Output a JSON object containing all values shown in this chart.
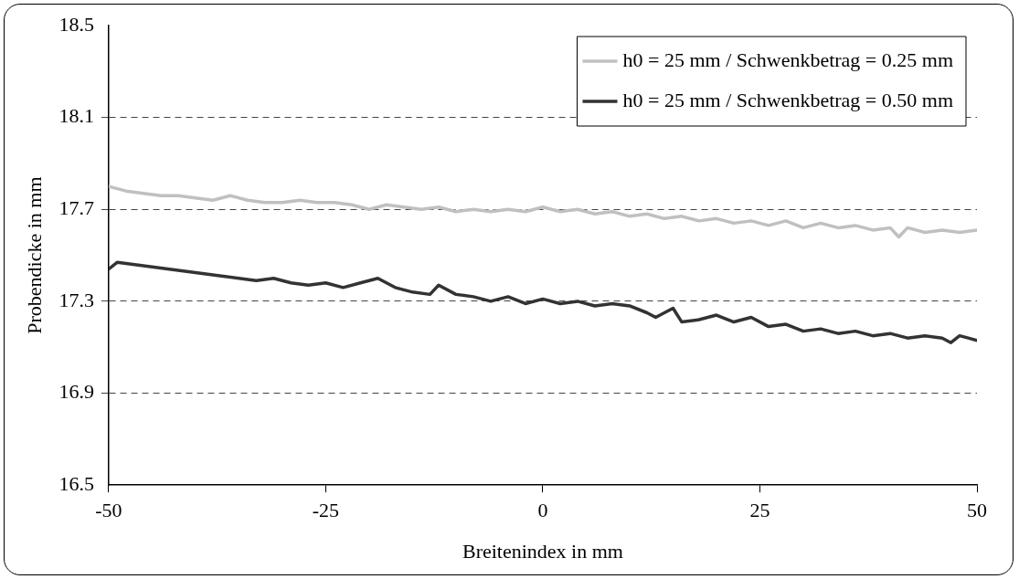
{
  "chart_data": {
    "type": "line",
    "xlabel": "Breitenindex in mm",
    "ylabel": "Probendicke in mm",
    "xlim": [
      -50,
      50
    ],
    "xticks": [
      -50,
      -25,
      0,
      25,
      50
    ],
    "ylim": [
      16.5,
      18.5
    ],
    "yticks": [
      16.5,
      16.9,
      17.3,
      17.7,
      18.1,
      18.5
    ],
    "grid": "y",
    "legend": "top right",
    "marker": "none",
    "line_style": "solid",
    "series": [
      {
        "name": "h0 = 25 mm / Schwenkbetrag = 0.25 mm",
        "color": "#c0c0c0",
        "x": [
          -50,
          -48,
          -46,
          -44,
          -42,
          -40,
          -38,
          -36,
          -34,
          -32,
          -30,
          -28,
          -26,
          -24,
          -22,
          -20,
          -18,
          -16,
          -14,
          -12,
          -10,
          -8,
          -6,
          -4,
          -2,
          0,
          2,
          4,
          6,
          8,
          10,
          12,
          14,
          16,
          18,
          20,
          22,
          24,
          26,
          28,
          30,
          32,
          34,
          36,
          38,
          40,
          41,
          42,
          44,
          46,
          48,
          50
        ],
        "values": [
          17.8,
          17.78,
          17.77,
          17.76,
          17.76,
          17.75,
          17.74,
          17.76,
          17.74,
          17.73,
          17.73,
          17.74,
          17.73,
          17.73,
          17.72,
          17.7,
          17.72,
          17.71,
          17.7,
          17.71,
          17.69,
          17.7,
          17.69,
          17.7,
          17.69,
          17.71,
          17.69,
          17.7,
          17.68,
          17.69,
          17.67,
          17.68,
          17.66,
          17.67,
          17.65,
          17.66,
          17.64,
          17.65,
          17.63,
          17.65,
          17.62,
          17.64,
          17.62,
          17.63,
          17.61,
          17.62,
          17.58,
          17.62,
          17.6,
          17.61,
          17.6,
          17.61
        ]
      },
      {
        "name": "h0 = 25 mm / Schwenkbetrag = 0.50 mm",
        "color": "#333333",
        "x": [
          -50,
          -49,
          -47,
          -45,
          -43,
          -41,
          -39,
          -37,
          -35,
          -33,
          -31,
          -29,
          -27,
          -25,
          -23,
          -21,
          -19,
          -17,
          -15,
          -13,
          -12,
          -10,
          -8,
          -6,
          -4,
          -2,
          0,
          2,
          4,
          6,
          8,
          10,
          12,
          13,
          15,
          16,
          18,
          20,
          22,
          24,
          26,
          28,
          30,
          32,
          34,
          36,
          38,
          40,
          42,
          44,
          46,
          47,
          48,
          49,
          50
        ],
        "values": [
          17.44,
          17.47,
          17.46,
          17.45,
          17.44,
          17.43,
          17.42,
          17.41,
          17.4,
          17.39,
          17.4,
          17.38,
          17.37,
          17.38,
          17.36,
          17.38,
          17.4,
          17.36,
          17.34,
          17.33,
          17.37,
          17.33,
          17.32,
          17.3,
          17.32,
          17.29,
          17.31,
          17.29,
          17.3,
          17.28,
          17.29,
          17.28,
          17.25,
          17.23,
          17.27,
          17.21,
          17.22,
          17.24,
          17.21,
          17.23,
          17.19,
          17.2,
          17.17,
          17.18,
          17.16,
          17.17,
          17.15,
          17.16,
          17.14,
          17.15,
          17.14,
          17.12,
          17.15,
          17.14,
          17.13
        ]
      }
    ]
  }
}
